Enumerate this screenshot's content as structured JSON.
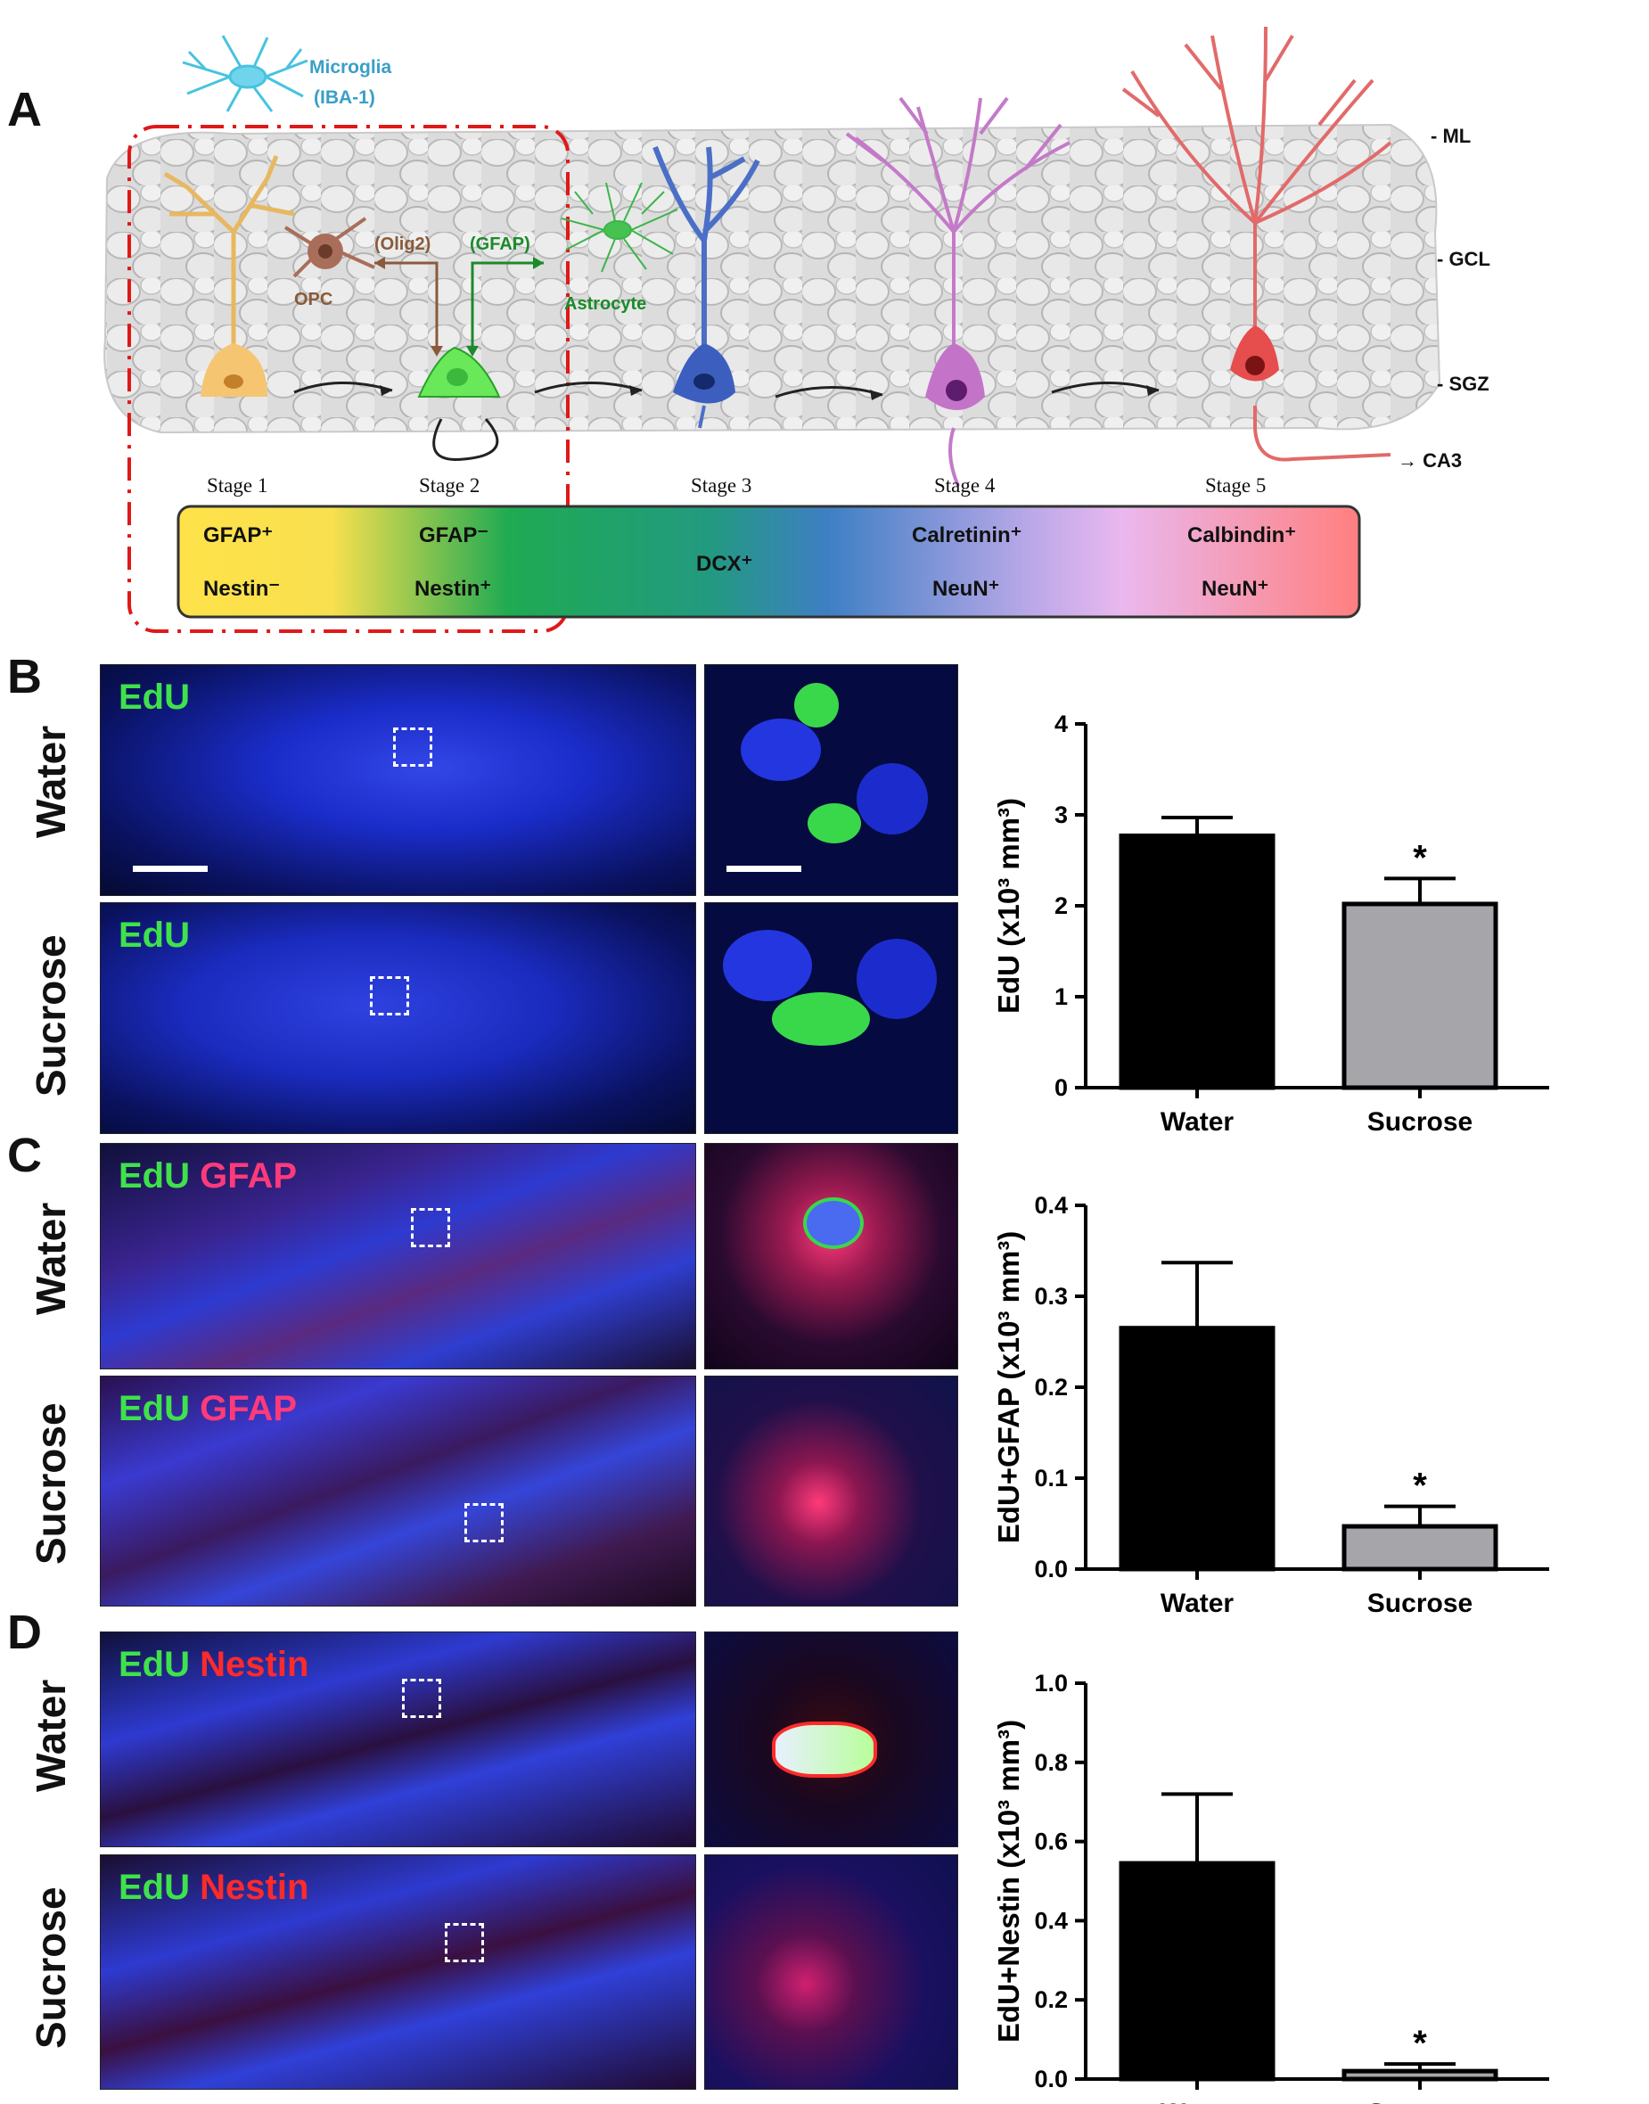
{
  "panel_letters": {
    "a": "A",
    "b": "B",
    "c": "C",
    "d": "D"
  },
  "schematic": {
    "microglia": "Microglia",
    "microglia_marker": "(IBA-1)",
    "opc": "OPC",
    "olig2": "(Olig2)",
    "gfap_arrow": "(GFAP)",
    "astrocyte": "Astrocyte",
    "layers": {
      "ml": "- ML",
      "gcl": "- GCL",
      "sgz": "- SGZ",
      "ca3": "→ CA3"
    },
    "stages": [
      "Stage 1",
      "Stage 2",
      "Stage 3",
      "Stage 4",
      "Stage 5"
    ],
    "markers": {
      "s1_top": "GFAP⁺",
      "s1_bottom": "Nestin⁻",
      "s2_top": "GFAP⁻",
      "s2_bottom": "Nestin⁺",
      "s3": "DCX⁺",
      "s4_top": "Calretinin⁺",
      "s4_bottom": "NeuN⁺",
      "s5_top": "Calbindin⁺",
      "s5_bottom": "NeuN⁺"
    }
  },
  "rows": {
    "water": "Water",
    "sucrose": "Sucrose"
  },
  "channels": {
    "edu": "EdU",
    "gfap": "GFAP",
    "nestin": "Nestin"
  },
  "colors": {
    "dapi": "#1b2fd8",
    "edu": "#3ee24a",
    "gfap": "#ff3a7a",
    "nestin": "#ff2a2a",
    "water_bar": "#000000",
    "sucrose_bar": "#a6a6aa"
  },
  "chart_data": [
    {
      "type": "bar",
      "categories": [
        "Water",
        "Sucrose"
      ],
      "values": [
        2.77,
        2.02
      ],
      "errors": [
        0.2,
        0.28
      ],
      "significance": [
        "",
        "*"
      ],
      "ylabel": "EdU (x10³ mm³)",
      "ylim": [
        0,
        4
      ],
      "yticks": [
        "0",
        "1",
        "2",
        "3",
        "4"
      ]
    },
    {
      "type": "bar",
      "categories": [
        "Water",
        "Sucrose"
      ],
      "values": [
        0.265,
        0.047
      ],
      "errors": [
        0.072,
        0.022
      ],
      "significance": [
        "",
        "*"
      ],
      "ylabel": "EdU+GFAP (x10³ mm³)",
      "ylim": [
        0,
        0.4
      ],
      "yticks": [
        "0.0",
        "0.1",
        "0.2",
        "0.3",
        "0.4"
      ]
    },
    {
      "type": "bar",
      "categories": [
        "Water",
        "Sucrose"
      ],
      "values": [
        0.545,
        0.02
      ],
      "errors": [
        0.175,
        0.018
      ],
      "significance": [
        "",
        "*"
      ],
      "ylabel": "EdU+Nestin (x10³ mm³)",
      "ylim": [
        0,
        1.0
      ],
      "yticks": [
        "0.0",
        "0.2",
        "0.4",
        "0.6",
        "0.8",
        "1.0"
      ]
    }
  ]
}
